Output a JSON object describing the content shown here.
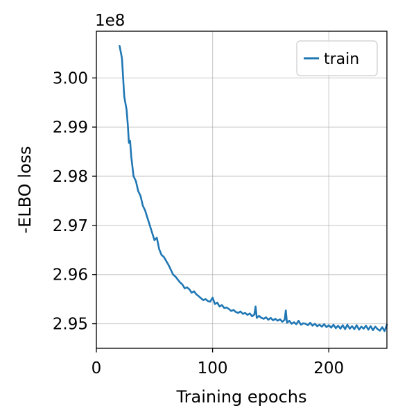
{
  "chart_data": {
    "type": "line",
    "title": "",
    "xlabel": "Training epochs",
    "ylabel": "-ELBO loss",
    "y_offset_label": "1e8",
    "xlim": [
      0,
      250
    ],
    "ylim": [
      2.945,
      3.0095
    ],
    "x_ticks": [
      0,
      100,
      200
    ],
    "x_tick_labels": [
      "0",
      "100",
      "200"
    ],
    "y_ticks": [
      2.95,
      2.96,
      2.97,
      2.98,
      2.99,
      3.0
    ],
    "y_tick_labels": [
      "2.95",
      "2.96",
      "2.97",
      "2.98",
      "2.99",
      "3.00"
    ],
    "grid": true,
    "legend": {
      "position": "top-right",
      "entries": [
        "train"
      ]
    },
    "series": [
      {
        "name": "train",
        "color": "#1f77b4",
        "x": [
          20,
          22,
          24,
          26,
          27,
          28,
          29,
          30,
          32,
          34,
          36,
          38,
          40,
          42,
          44,
          46,
          48,
          50,
          52,
          54,
          56,
          58,
          60,
          62,
          64,
          66,
          68,
          70,
          72,
          74,
          76,
          78,
          80,
          82,
          84,
          86,
          88,
          90,
          92,
          94,
          96,
          98,
          100,
          102,
          104,
          106,
          108,
          110,
          112,
          114,
          116,
          118,
          120,
          122,
          124,
          126,
          128,
          130,
          132,
          134,
          136,
          137,
          138,
          140,
          142,
          144,
          146,
          148,
          150,
          152,
          154,
          156,
          158,
          160,
          162,
          163,
          164,
          166,
          168,
          170,
          172,
          174,
          176,
          178,
          180,
          182,
          184,
          186,
          188,
          190,
          192,
          194,
          196,
          198,
          200,
          202,
          204,
          206,
          208,
          210,
          212,
          214,
          216,
          218,
          220,
          222,
          224,
          226,
          228,
          230,
          232,
          234,
          236,
          238,
          240,
          242,
          244,
          246,
          248,
          250
        ],
        "y": [
          3.0065,
          3.004,
          2.9962,
          2.9935,
          2.9905,
          2.9868,
          2.9872,
          2.984,
          2.98,
          2.979,
          2.977,
          2.976,
          2.974,
          2.973,
          2.9715,
          2.97,
          2.9685,
          2.967,
          2.9675,
          2.9652,
          2.964,
          2.9636,
          2.9628,
          2.962,
          2.961,
          2.96,
          2.9596,
          2.959,
          2.9584,
          2.958,
          2.9572,
          2.9574,
          2.957,
          2.9563,
          2.9566,
          2.956,
          2.9556,
          2.9552,
          2.9548,
          2.955,
          2.9546,
          2.9545,
          2.9553,
          2.954,
          2.9543,
          2.9535,
          2.9538,
          2.9532,
          2.9533,
          2.953,
          2.9526,
          2.9528,
          2.9524,
          2.9522,
          2.9525,
          2.952,
          2.9522,
          2.9518,
          2.9521,
          2.9515,
          2.9519,
          2.9535,
          2.9512,
          2.9516,
          2.9512,
          2.951,
          2.9513,
          2.9508,
          2.9512,
          2.9507,
          2.951,
          2.9506,
          2.9509,
          2.9504,
          2.9508,
          2.9527,
          2.9502,
          2.9506,
          2.95,
          2.9503,
          2.9499,
          2.9506,
          2.9498,
          2.9501,
          2.95,
          2.9497,
          2.9502,
          2.9496,
          2.95,
          2.9495,
          2.9498,
          2.9494,
          2.9499,
          2.9493,
          2.9497,
          2.9492,
          2.9498,
          2.9491,
          2.9496,
          2.949,
          2.9497,
          2.9489,
          2.9498,
          2.949,
          2.9495,
          2.9489,
          2.9497,
          2.9488,
          2.9494,
          2.949,
          2.9496,
          2.9488,
          2.9495,
          2.9487,
          2.9494,
          2.9489,
          2.9486,
          2.9493,
          2.9485,
          2.9498
        ]
      }
    ]
  }
}
